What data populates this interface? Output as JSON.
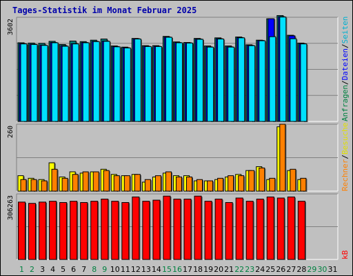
{
  "title": "Tages-Statistik im Monat Februar 2025",
  "legend_top": [
    {
      "text": "Anfragen",
      "color": "#008040"
    },
    {
      "text": "/",
      "color": "#000000"
    },
    {
      "text": "Dateien",
      "color": "#0000ff"
    },
    {
      "text": "/",
      "color": "#000000"
    },
    {
      "text": "Seiten",
      "color": "#00b0d0"
    }
  ],
  "legend_mid": [
    {
      "text": "Rechner",
      "color": "#ff8000"
    },
    {
      "text": "/",
      "color": "#000000"
    },
    {
      "text": "Besuche",
      "color": "#e0e000"
    }
  ],
  "legend_bot": [
    {
      "text": "kB",
      "color": "#ff0000"
    }
  ],
  "colors": {
    "anfragen": "#008080",
    "dateien": "#0000ff",
    "seiten": "#00e0ff",
    "besuche": "#ffff00",
    "rechner": "#ff8000",
    "kb": "#ff0000",
    "weekday_label": "#000000",
    "weekend_label": "#008040"
  },
  "chart_data": [
    {
      "type": "bar",
      "title": "",
      "ymax_label": "3602",
      "ylim": [
        0,
        3602
      ],
      "x": [
        1,
        2,
        3,
        4,
        5,
        6,
        7,
        8,
        9,
        10,
        11,
        12,
        13,
        14,
        15,
        16,
        17,
        18,
        19,
        20,
        21,
        22,
        23,
        24,
        25,
        26,
        27,
        28
      ],
      "series": [
        {
          "name": "Anfragen",
          "values": [
            2720,
            2710,
            2700,
            2770,
            2660,
            2780,
            2760,
            2810,
            2850,
            2610,
            2570,
            2870,
            2620,
            2620,
            2940,
            2750,
            2730,
            2870,
            2610,
            2890,
            2610,
            2920,
            2650,
            2810,
            3550,
            3660,
            2980,
            2710
          ]
        },
        {
          "name": "Dateien",
          "values": [
            2690,
            2670,
            2640,
            2730,
            2620,
            2690,
            2730,
            2770,
            2780,
            2590,
            2550,
            2860,
            2600,
            2600,
            2920,
            2730,
            2720,
            2850,
            2580,
            2860,
            2580,
            2900,
            2630,
            2800,
            3550,
            3620,
            2960,
            2690
          ]
        },
        {
          "name": "Seiten",
          "values": [
            2680,
            2660,
            2630,
            2720,
            2600,
            2680,
            2720,
            2760,
            2770,
            2580,
            2540,
            2850,
            2590,
            2590,
            2910,
            2720,
            2710,
            2840,
            2570,
            2850,
            2570,
            2890,
            2620,
            2790,
            2930,
            3610,
            2860,
            2680
          ]
        }
      ]
    },
    {
      "type": "bar",
      "title": "",
      "ymax_label": "260",
      "ylim": [
        0,
        260
      ],
      "x": [
        1,
        2,
        3,
        4,
        5,
        6,
        7,
        8,
        9,
        10,
        11,
        12,
        13,
        14,
        15,
        16,
        17,
        18,
        19,
        20,
        21,
        22,
        23,
        24,
        25,
        26,
        27,
        28
      ],
      "series": [
        {
          "name": "Besuche",
          "values": [
            60,
            50,
            45,
            110,
            55,
            75,
            70,
            75,
            85,
            65,
            60,
            65,
            35,
            55,
            70,
            60,
            60,
            40,
            40,
            45,
            55,
            65,
            80,
            95,
            45,
            250,
            80,
            45
          ]
        },
        {
          "name": "Rechner",
          "values": [
            45,
            45,
            40,
            85,
            50,
            65,
            75,
            75,
            80,
            60,
            60,
            65,
            45,
            60,
            75,
            55,
            55,
            45,
            40,
            50,
            60,
            60,
            80,
            90,
            50,
            260,
            85,
            50
          ]
        }
      ]
    },
    {
      "type": "bar",
      "title": "",
      "ymax_label": "306263",
      "ylim": [
        0,
        306263
      ],
      "x": [
        1,
        2,
        3,
        4,
        5,
        6,
        7,
        8,
        9,
        10,
        11,
        12,
        13,
        14,
        15,
        16,
        17,
        18,
        19,
        20,
        21,
        22,
        23,
        24,
        25,
        26,
        27,
        28
      ],
      "series": [
        {
          "name": "kB",
          "values": [
            268000,
            262000,
            268000,
            272000,
            266000,
            272000,
            266000,
            272000,
            282000,
            272000,
            266000,
            292000,
            272000,
            277000,
            296000,
            282000,
            282000,
            296000,
            272000,
            282000,
            266000,
            287000,
            272000,
            282000,
            292000,
            287000,
            292000,
            272000
          ]
        }
      ]
    }
  ],
  "x_labels": [
    "1",
    "2",
    "3",
    "4",
    "5",
    "6",
    "7",
    "8",
    "9",
    "10",
    "11",
    "12",
    "13",
    "14",
    "15",
    "16",
    "17",
    "18",
    "19",
    "20",
    "21",
    "22",
    "23",
    "24",
    "25",
    "26",
    "27",
    "28",
    "29",
    "30",
    "31"
  ],
  "weekend_days": [
    1,
    2,
    8,
    9,
    15,
    16,
    22,
    23,
    29,
    30
  ]
}
